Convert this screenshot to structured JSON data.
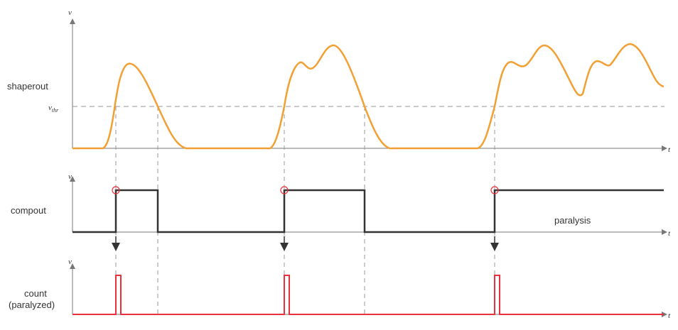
{
  "labels": {
    "shaperout": "shaperout",
    "compout": "compout",
    "count_line1": "count",
    "count_line2": "(paralyzed)",
    "paralysis": "paralysis"
  },
  "axes": {
    "v": "v",
    "t": "t",
    "vth_main": "v",
    "vth_sub": "thr"
  },
  "colors": {
    "shaperout": "#f2a033",
    "compout": "#333333",
    "count": "#e8303e",
    "dashed": "#999999",
    "axis": "#777777"
  }
}
